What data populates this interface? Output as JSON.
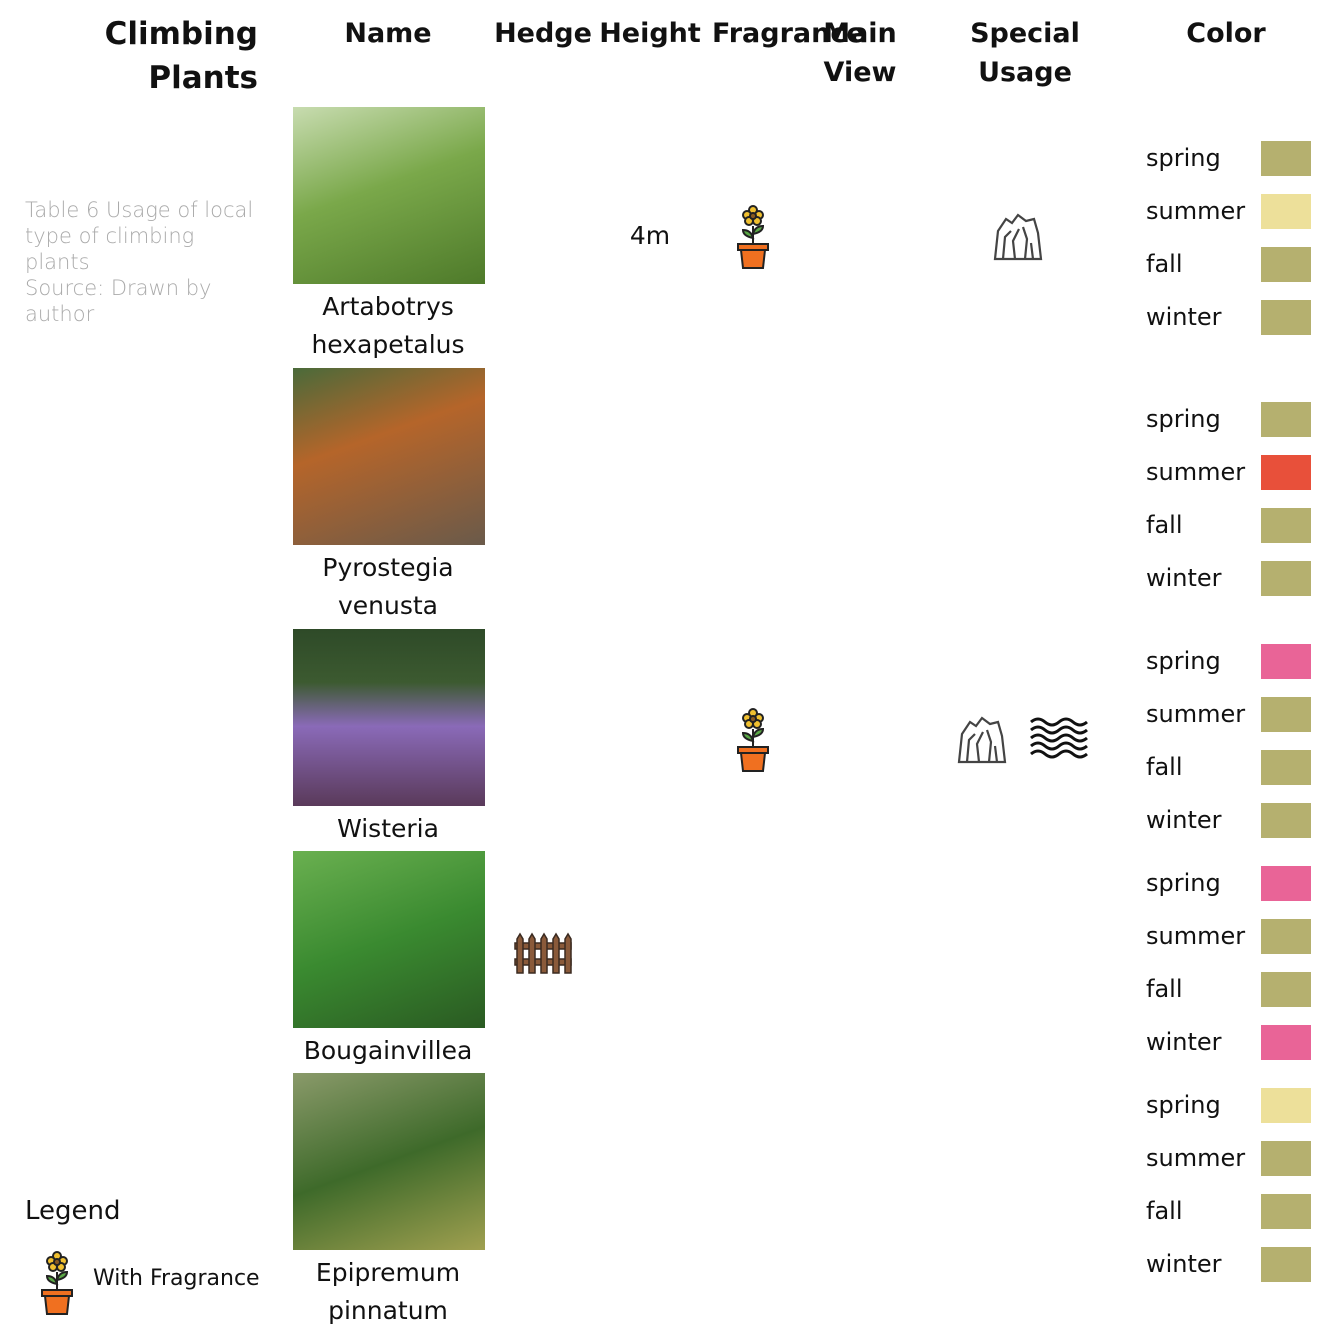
{
  "title": "Climbing Plants",
  "caption": {
    "text": "Table 6 Usage of local type of climbing plants",
    "source": "Source: Drawn by author"
  },
  "columns": [
    "Name",
    "Hedge",
    "Height",
    "Fragrance",
    "Main View",
    "Special Usage",
    "Color"
  ],
  "rows": [
    {
      "name": "Artabotrys hexapetalus",
      "height": "4m",
      "fragrance": true,
      "special_usage": [
        "rock"
      ],
      "colors": [
        {
          "season": "spring",
          "color": "#b5b06f"
        },
        {
          "season": "summer",
          "color": "#ede09a"
        },
        {
          "season": "fall",
          "color": "#b5b06f"
        },
        {
          "season": "winter",
          "color": "#b5b06f"
        }
      ]
    },
    {
      "name": "Pyrostegia venusta",
      "colors": [
        {
          "season": "spring",
          "color": "#b5b06f"
        },
        {
          "season": "summer",
          "color": "#e8503a"
        },
        {
          "season": "fall",
          "color": "#b5b06f"
        },
        {
          "season": "winter",
          "color": "#b5b06f"
        }
      ]
    },
    {
      "name": "Wisteria",
      "fragrance": true,
      "special_usage": [
        "rock",
        "water"
      ],
      "colors": [
        {
          "season": "spring",
          "color": "#e96497"
        },
        {
          "season": "summer",
          "color": "#b5b06f"
        },
        {
          "season": "fall",
          "color": "#b5b06f"
        },
        {
          "season": "winter",
          "color": "#b5b06f"
        }
      ]
    },
    {
      "name": "Bougainvillea",
      "hedge": true,
      "colors": [
        {
          "season": "spring",
          "color": "#e96497"
        },
        {
          "season": "summer",
          "color": "#b5b06f"
        },
        {
          "season": "fall",
          "color": "#b5b06f"
        },
        {
          "season": "winter",
          "color": "#e96497"
        }
      ]
    },
    {
      "name": "Epipremum pinnatum",
      "colors": [
        {
          "season": "spring",
          "color": "#ede09a"
        },
        {
          "season": "summer",
          "color": "#b5b06f"
        },
        {
          "season": "fall",
          "color": "#b5b06f"
        },
        {
          "season": "winter",
          "color": "#b5b06f"
        }
      ]
    }
  ],
  "legend": {
    "title": "Legend",
    "items": [
      "With Fragrance"
    ]
  }
}
